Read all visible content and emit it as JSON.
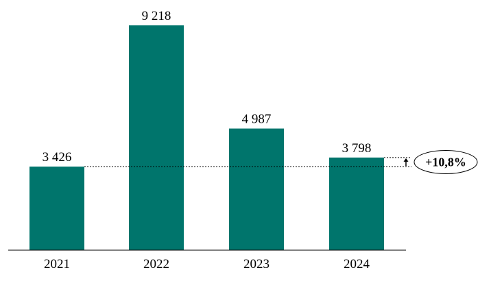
{
  "chart_data": {
    "type": "bar",
    "categories": [
      "2021",
      "2022",
      "2023",
      "2024"
    ],
    "values": [
      3426,
      9218,
      4987,
      3798
    ],
    "value_labels": [
      "3 426",
      "9 218",
      "4 987",
      "3 798"
    ],
    "title": "",
    "xlabel": "",
    "ylabel": "",
    "ylim": [
      0,
      9218
    ],
    "grid": false,
    "legend": "none",
    "bar_color": "#00756C",
    "annotation": {
      "text": "+10,8%",
      "from_category": "2021",
      "to_category": "2024"
    }
  }
}
